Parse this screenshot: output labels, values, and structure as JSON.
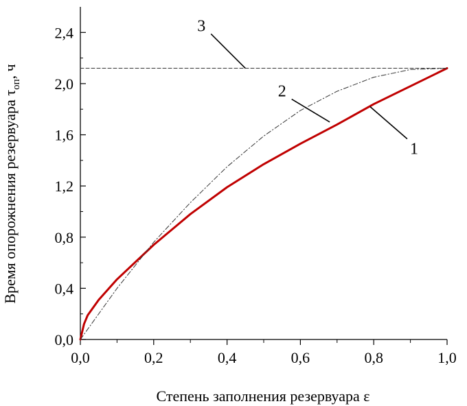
{
  "chart_data": {
    "type": "line",
    "xlabel": "Степень заполнения резервуара ε",
    "ylabel": "Время опорожнения резервуара τ",
    "ylabel_sub": "оп",
    "ylabel_unit": ", ч",
    "xlim": [
      0.0,
      1.0
    ],
    "ylim": [
      0.0,
      2.6
    ],
    "x_ticks": [
      0.0,
      0.2,
      0.4,
      0.6,
      0.8,
      1.0
    ],
    "x_tick_labels": [
      "0,0",
      "0,2",
      "0,4",
      "0,6",
      "0,8",
      "1,0"
    ],
    "y_ticks": [
      0.0,
      0.4,
      0.8,
      1.2,
      1.6,
      2.0,
      2.4
    ],
    "y_tick_labels": [
      "0,0",
      "0,4",
      "0,8",
      "1,2",
      "1,6",
      "2,0",
      "2,4"
    ],
    "grid": false,
    "series": [
      {
        "name": "1",
        "color": "#c00000",
        "style": "solid",
        "x": [
          0.0,
          0.01,
          0.02,
          0.05,
          0.1,
          0.2,
          0.3,
          0.4,
          0.5,
          0.6,
          0.7,
          0.8,
          0.9,
          1.0
        ],
        "y": [
          0.0,
          0.12,
          0.19,
          0.31,
          0.47,
          0.74,
          0.98,
          1.19,
          1.37,
          1.53,
          1.68,
          1.84,
          1.98,
          2.12
        ]
      },
      {
        "name": "2",
        "color": "#333333",
        "style": "dashdot",
        "x": [
          0.0,
          0.1,
          0.2,
          0.3,
          0.4,
          0.5,
          0.6,
          0.7,
          0.8,
          0.9,
          1.0
        ],
        "y": [
          0.0,
          0.4,
          0.76,
          1.07,
          1.35,
          1.59,
          1.79,
          1.94,
          2.05,
          2.11,
          2.12
        ]
      },
      {
        "name": "3",
        "color": "#333333",
        "style": "dashed",
        "x": [
          0.0,
          1.0
        ],
        "y": [
          2.12,
          2.12
        ]
      }
    ],
    "annotations": [
      {
        "text": "1",
        "x": 0.91,
        "y": 1.45,
        "pointer_x": 0.79,
        "pointer_y": 1.82
      },
      {
        "text": "2",
        "x": 0.55,
        "y": 1.9,
        "pointer_x": 0.68,
        "pointer_y": 1.7
      },
      {
        "text": "3",
        "x": 0.33,
        "y": 2.41,
        "pointer_x": 0.45,
        "pointer_y": 2.12
      }
    ]
  }
}
